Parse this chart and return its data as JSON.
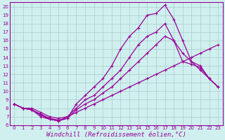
{
  "xlabel": "Windchill (Refroidissement éolien,°C)",
  "bg_color": "#cff0ee",
  "line_color": "#990099",
  "grid_color": "#aacccc",
  "xlim": [
    -0.5,
    23.5
  ],
  "ylim": [
    6,
    20.5
  ],
  "xticks": [
    0,
    1,
    2,
    3,
    4,
    5,
    6,
    7,
    8,
    9,
    10,
    11,
    12,
    13,
    14,
    15,
    16,
    17,
    18,
    19,
    20,
    21,
    22,
    23
  ],
  "yticks": [
    6,
    7,
    8,
    9,
    10,
    11,
    12,
    13,
    14,
    15,
    16,
    17,
    18,
    19,
    20
  ],
  "line1_x": [
    0,
    1,
    2,
    3,
    4,
    5,
    6,
    7,
    8,
    9,
    10,
    11,
    12,
    13,
    14,
    15,
    16,
    17,
    18,
    19,
    20,
    21,
    22,
    23
  ],
  "line1_y": [
    8.5,
    8.0,
    8.0,
    7.5,
    7.0,
    6.8,
    7.0,
    7.5,
    8.0,
    8.5,
    9.0,
    9.5,
    10.0,
    10.5,
    11.0,
    11.5,
    12.0,
    12.5,
    13.0,
    13.5,
    14.0,
    14.5,
    15.0,
    15.5
  ],
  "line2_x": [
    0,
    1,
    2,
    3,
    4,
    5,
    6,
    7,
    8,
    9,
    10,
    11,
    12,
    13,
    14,
    15,
    16,
    17,
    18,
    19,
    20,
    21,
    22,
    23
  ],
  "line2_y": [
    8.5,
    8.0,
    7.8,
    7.0,
    6.7,
    6.5,
    6.8,
    8.5,
    9.5,
    10.5,
    11.5,
    13.0,
    15.0,
    16.5,
    17.5,
    19.0,
    19.2,
    20.2,
    18.5,
    16.0,
    13.5,
    13.0,
    11.5,
    10.5
  ],
  "line3_x": [
    0,
    1,
    2,
    3,
    4,
    5,
    6,
    7,
    8,
    9,
    10,
    11,
    12,
    13,
    14,
    15,
    16,
    17,
    18,
    19,
    20,
    21,
    22,
    23
  ],
  "line3_y": [
    8.5,
    8.0,
    7.8,
    7.2,
    6.7,
    6.5,
    7.0,
    8.0,
    9.0,
    9.5,
    10.5,
    11.5,
    12.5,
    14.0,
    15.5,
    16.5,
    17.0,
    18.0,
    16.0,
    13.5,
    13.2,
    12.8,
    11.5,
    10.5
  ],
  "line4_x": [
    0,
    1,
    2,
    3,
    4,
    5,
    6,
    7,
    8,
    9,
    10,
    11,
    12,
    13,
    14,
    15,
    16,
    17,
    18,
    19,
    20,
    21,
    22,
    23
  ],
  "line4_y": [
    8.5,
    8.0,
    7.8,
    7.3,
    6.8,
    6.6,
    6.8,
    7.8,
    8.5,
    9.0,
    9.8,
    10.5,
    11.5,
    12.5,
    13.5,
    14.5,
    15.5,
    16.5,
    16.0,
    14.5,
    13.5,
    12.5,
    11.5,
    10.5
  ],
  "marker": "+",
  "markersize": 3.5,
  "linewidth": 0.9,
  "tick_fontsize": 5.0,
  "xlabel_fontsize": 6.5
}
